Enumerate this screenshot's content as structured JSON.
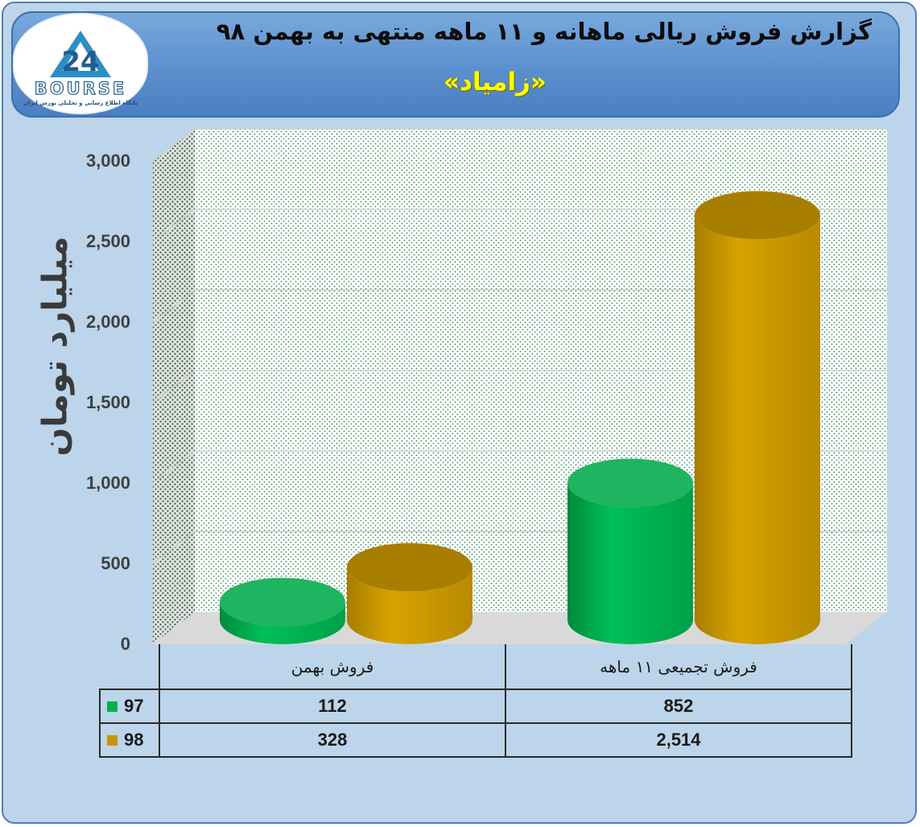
{
  "logo": {
    "text": "BOURSE",
    "subtitle": "پایگاه اطلاع رسانی و تحلیلی بورس ایران"
  },
  "title": {
    "main": "گزارش فروش ریالی ماهانه و ۱۱ ماهه منتهی به بهمن ۹۸",
    "company": "«زامیاد»"
  },
  "colors": {
    "background": "#bcd5ea",
    "banner": "#5b8fce",
    "series_97": "#00b050",
    "series_98": "#c69600",
    "title_company": "#ffff00"
  },
  "chart_data": {
    "type": "bar",
    "style": "3d-cylinder",
    "categories": [
      "فروش بهمن",
      "فروش تجمیعی ۱۱ ماهه"
    ],
    "series": [
      {
        "name": "97",
        "values": [
          112,
          852
        ],
        "color": "#00b050"
      },
      {
        "name": "98",
        "values": [
          328,
          2514
        ],
        "color": "#c69600"
      }
    ],
    "ylabel": "میلیارد تومان",
    "ylim": [
      0,
      3000
    ],
    "yticks": [
      "0",
      "500",
      "1,000",
      "1,500",
      "2,000",
      "2,500",
      "3,000"
    ],
    "ytick_values": [
      0,
      500,
      1000,
      1500,
      2000,
      2500,
      3000
    ],
    "data_table": [
      [
        "112",
        "852"
      ],
      [
        "328",
        "2,514"
      ]
    ],
    "grid": true,
    "legend": "data table (left)"
  }
}
